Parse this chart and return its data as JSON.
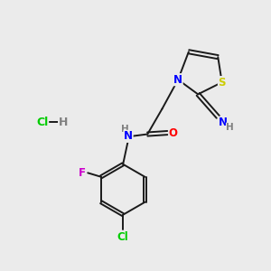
{
  "background_color": "#ebebeb",
  "bond_color": "#1a1a1a",
  "atom_colors": {
    "N": "#0000ff",
    "O": "#ff0000",
    "S": "#cccc00",
    "F": "#cc00cc",
    "Cl": "#00cc00",
    "H": "#808080",
    "C": "#1a1a1a"
  },
  "lw": 1.4,
  "fs": 8.5
}
